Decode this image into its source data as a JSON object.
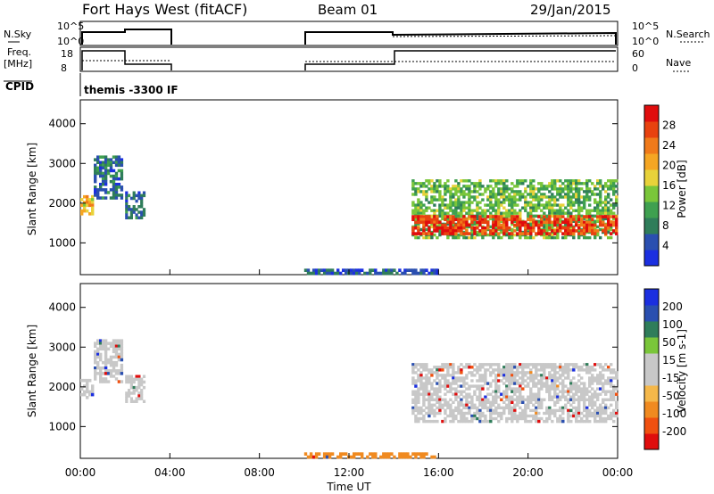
{
  "header": {
    "title": "Fort Hays West (fitACF)",
    "beam": "Beam 01",
    "date": "29/Jan/2015"
  },
  "strips": {
    "nsky_label": "N.Sky",
    "nsearch_label": "N.Search",
    "nsky_ticks": [
      "10^5",
      "10^0"
    ],
    "nsky_right_ticks": [
      "10^5",
      "10^0"
    ],
    "freq_label": "Freq.",
    "freq_unit": "[MHz]",
    "freq_ticks": [
      "18",
      "8"
    ],
    "nave_label": "Nave",
    "nave_ticks": [
      "60",
      "0"
    ],
    "cpid_label": "CPID",
    "cpid_value": "themis -3300 IF"
  },
  "colors": {
    "power_scale": [
      "#1b2fe0",
      "#2a4fb0",
      "#2f7d5a",
      "#3fa050",
      "#7ac63a",
      "#e8d23a",
      "#f5a623",
      "#f07a1a",
      "#e8420f",
      "#e00d0d"
    ],
    "velocity_scale": [
      "#e00d0d",
      "#f05010",
      "#f08a20",
      "#f5b84a",
      "#c8c8c8",
      "#c8c8c8",
      "#7ac63a",
      "#2f7d5a",
      "#2a4fb0",
      "#1b2fe0"
    ],
    "scatter_gray": "#c8c8c8"
  },
  "chart_data": [
    {
      "type": "heatmap",
      "panel": "power",
      "ylabel": "Slant Range [km]",
      "ylim": [
        200,
        4600
      ],
      "yticks": [
        "4000",
        "3000",
        "2000",
        "1000"
      ],
      "xlim": [
        0,
        24
      ],
      "colorbar_label": "Power [dB]",
      "colorbar_ticks": [
        "28",
        "24",
        "20",
        "16",
        "12",
        "8",
        "4"
      ],
      "colorbar_range": [
        0,
        30
      ],
      "regions": [
        {
          "t_start": 0.0,
          "t_end": 0.6,
          "range_low": 1700,
          "range_high": 2200,
          "value": 18
        },
        {
          "t_start": 0.6,
          "t_end": 1.9,
          "range_low": 2100,
          "range_high": 3200,
          "value": 6
        },
        {
          "t_start": 2.0,
          "t_end": 2.9,
          "range_low": 1600,
          "range_high": 2300,
          "value": 6
        },
        {
          "t_start": 14.8,
          "t_end": 24.0,
          "range_low": 1100,
          "range_high": 2600,
          "value": 12
        },
        {
          "t_start": 14.8,
          "t_end": 24.0,
          "range_low": 1200,
          "range_high": 1700,
          "value": 26
        },
        {
          "t_start": 10.0,
          "t_end": 16.0,
          "range_low": 200,
          "range_high": 350,
          "value": 5
        }
      ]
    },
    {
      "type": "heatmap",
      "panel": "velocity",
      "ylabel": "Slant Range [km]",
      "ylim": [
        200,
        4600
      ],
      "yticks": [
        "4000",
        "3000",
        "2000",
        "1000"
      ],
      "xlim": [
        0,
        24
      ],
      "xlabel": "Time UT",
      "xticks": [
        "00:00",
        "04:00",
        "08:00",
        "12:00",
        "16:00",
        "20:00",
        "00:00"
      ],
      "colorbar_label": "Velocity [m s-1]",
      "colorbar_ticks": [
        "200",
        "100",
        "50",
        "15",
        "-15",
        "-50",
        "-100",
        "-200"
      ],
      "regions": [
        {
          "t_start": 0.0,
          "t_end": 0.6,
          "range_low": 1700,
          "range_high": 2200,
          "value": 0
        },
        {
          "t_start": 0.6,
          "t_end": 1.9,
          "range_low": 2100,
          "range_high": 3200,
          "value": 0
        },
        {
          "t_start": 2.0,
          "t_end": 2.9,
          "range_low": 1600,
          "range_high": 2300,
          "value": 0
        },
        {
          "t_start": 14.8,
          "t_end": 24.0,
          "range_low": 1100,
          "range_high": 2600,
          "value": 0
        },
        {
          "t_start": 10.0,
          "t_end": 16.0,
          "range_low": 200,
          "range_high": 350,
          "value": -60
        }
      ]
    }
  ]
}
